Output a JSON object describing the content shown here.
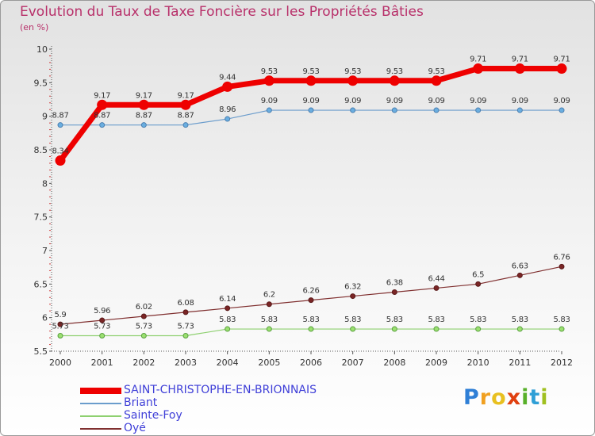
{
  "title": "Evolution du Taux de Taxe Foncière sur les Propriétés Bâties",
  "subtitle": "(en %)",
  "logo": {
    "text": "Proxiti",
    "letters": [
      "P",
      "r",
      "o",
      "x",
      "i",
      "t",
      "i"
    ],
    "colors": [
      "#2f7fd6",
      "#f0a020",
      "#e8c020",
      "#e04010",
      "#58b02a",
      "#2f9fd6",
      "#a0c020"
    ]
  },
  "chart_data": {
    "type": "line",
    "title": "Evolution du Taux de Taxe Foncière sur les Propriétés Bâties",
    "ylabel": "(en %)",
    "xlabel": "",
    "x": [
      "2000",
      "2001",
      "2002",
      "2003",
      "2004",
      "2005",
      "2006",
      "2007",
      "2008",
      "2009",
      "2010",
      "2011",
      "2012"
    ],
    "ylim": [
      5.5,
      10
    ],
    "yticks": [
      "5.5",
      "6",
      "6.5",
      "7",
      "7.5",
      "8",
      "8.5",
      "9",
      "9.5",
      "10"
    ],
    "grid": false,
    "legend_position": "bottom-left",
    "series": [
      {
        "name": "SAINT-CHRISTOPHE-EN-BRIONNAIS",
        "color": "#ee0000",
        "values": [
          8.34,
          9.17,
          9.17,
          9.17,
          9.44,
          9.53,
          9.53,
          9.53,
          9.53,
          9.53,
          9.71,
          9.71,
          9.71
        ],
        "labels": [
          "8.34",
          "9.17",
          "9.17",
          "9.17",
          "9.44",
          "9.53",
          "9.53",
          "9.53",
          "9.53",
          "9.53",
          "9.71",
          "9.71",
          "9.71"
        ]
      },
      {
        "name": "Briant",
        "color": "#6a9ccc",
        "values": [
          8.87,
          8.87,
          8.87,
          8.87,
          8.96,
          9.09,
          9.09,
          9.09,
          9.09,
          9.09,
          9.09,
          9.09,
          9.09
        ],
        "labels": [
          "8.87",
          "8.87",
          "8.87",
          "8.87",
          "8.96",
          "9.09",
          "9.09",
          "9.09",
          "9.09",
          "9.09",
          "9.09",
          "9.09",
          "9.09"
        ]
      },
      {
        "name": "Sainte-Foy",
        "color": "#8ed070",
        "values": [
          5.73,
          5.73,
          5.73,
          5.73,
          5.83,
          5.83,
          5.83,
          5.83,
          5.83,
          5.83,
          5.83,
          5.83,
          5.83
        ],
        "labels": [
          "5.73",
          "5.73",
          "5.73",
          "5.73",
          "5.83",
          "5.83",
          "5.83",
          "5.83",
          "5.83",
          "5.83",
          "5.83",
          "5.83",
          "5.83"
        ]
      },
      {
        "name": "Oyé",
        "color": "#803030",
        "values": [
          5.9,
          5.96,
          6.02,
          6.08,
          6.14,
          6.2,
          6.26,
          6.32,
          6.38,
          6.44,
          6.5,
          6.63,
          6.76
        ],
        "labels": [
          "5.9",
          "5.96",
          "6.02",
          "6.08",
          "6.14",
          "6.2",
          "6.26",
          "6.32",
          "6.38",
          "6.44",
          "6.5",
          "6.63",
          "6.76"
        ]
      }
    ]
  }
}
